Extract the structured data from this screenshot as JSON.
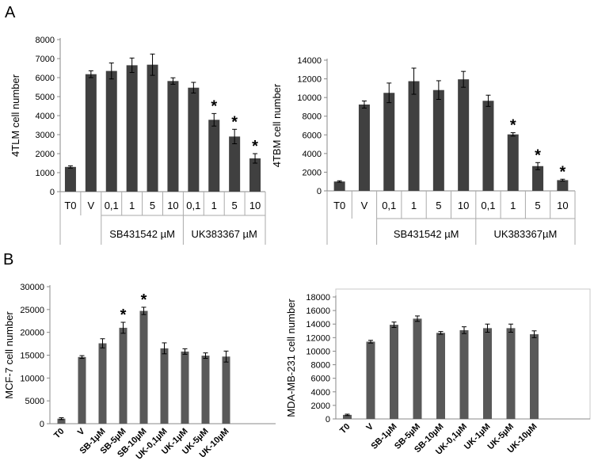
{
  "panels": [
    "A",
    "B"
  ],
  "chart_data": [
    {
      "id": "a1",
      "type": "bar",
      "ylabel": "4TLM cell number",
      "ylim": [
        0,
        8000
      ],
      "yticks": [
        0,
        1000,
        2000,
        3000,
        4000,
        5000,
        6000,
        7000,
        8000
      ],
      "categories": [
        "T0",
        "V",
        "0,1",
        "1",
        "5",
        "10",
        "0,1",
        "1",
        "5",
        "10"
      ],
      "values": [
        1300,
        6180,
        6350,
        6650,
        6680,
        5820,
        5470,
        3780,
        2900,
        1750
      ],
      "errors": [
        60,
        180,
        420,
        380,
        560,
        170,
        280,
        330,
        380,
        250
      ],
      "significant": [
        "",
        "",
        "",
        "",
        "",
        "",
        "",
        "*",
        "*",
        "*"
      ],
      "groups": [
        {
          "label": "SB431542 µM",
          "start": 2,
          "end": 5
        },
        {
          "label": "UK383367 µM",
          "start": 6,
          "end": 9
        }
      ]
    },
    {
      "id": "a2",
      "type": "bar",
      "ylabel": "4TBM cell number",
      "ylim": [
        0,
        14000
      ],
      "yticks": [
        0,
        2000,
        4000,
        6000,
        8000,
        10000,
        12000,
        14000
      ],
      "categories": [
        "T0",
        "V",
        "0,1",
        "1",
        "5",
        "10",
        "0,1",
        "1",
        "5",
        "10"
      ],
      "values": [
        1000,
        9250,
        10500,
        11750,
        10800,
        11950,
        9650,
        6050,
        2650,
        1150
      ],
      "errors": [
        80,
        380,
        1050,
        1400,
        1000,
        850,
        600,
        180,
        380,
        100
      ],
      "significant": [
        "",
        "",
        "",
        "",
        "",
        "",
        "",
        "*",
        "*",
        "*"
      ],
      "groups": [
        {
          "label": "SB431542 µM",
          "start": 2,
          "end": 5
        },
        {
          "label": "UK383367µM",
          "start": 6,
          "end": 9
        }
      ]
    },
    {
      "id": "b1",
      "type": "bar",
      "ylabel": "MCF-7 cell number",
      "ylim": [
        0,
        30000
      ],
      "yticks": [
        0,
        5000,
        10000,
        15000,
        20000,
        25000,
        30000
      ],
      "categories": [
        "T0",
        "V",
        "SB-1µM",
        "SB-5µM",
        "SB-10µM",
        "UK-0,1µM",
        "UK-1µM",
        "UK-5µM",
        "UK-10µM"
      ],
      "values": [
        1100,
        14600,
        17600,
        21000,
        24700,
        16500,
        15800,
        14900,
        14700
      ],
      "errors": [
        200,
        300,
        1000,
        1200,
        800,
        1200,
        600,
        600,
        1200
      ],
      "significant": [
        "",
        "",
        "",
        "*",
        "*",
        "",
        "",
        "",
        ""
      ]
    },
    {
      "id": "b2",
      "type": "bar",
      "ylabel": "MDA-MB-231 cell number",
      "ylim": [
        0,
        18000
      ],
      "yticks": [
        0,
        2000,
        4000,
        6000,
        8000,
        10000,
        12000,
        14000,
        16000,
        18000
      ],
      "categories": [
        "T0",
        "V",
        "SB-1µM",
        "SB-5µM",
        "SB-10µM",
        "UK-0,1µM",
        "UK-1µM",
        "UK-5µM",
        "UK-10µM"
      ],
      "values": [
        600,
        11400,
        13900,
        14800,
        12700,
        13100,
        13400,
        13400,
        12500
      ],
      "errors": [
        100,
        200,
        400,
        400,
        200,
        500,
        600,
        600,
        500
      ],
      "significant": [
        "",
        "",
        "",
        "",
        "",
        "",
        "",
        "",
        ""
      ]
    }
  ]
}
